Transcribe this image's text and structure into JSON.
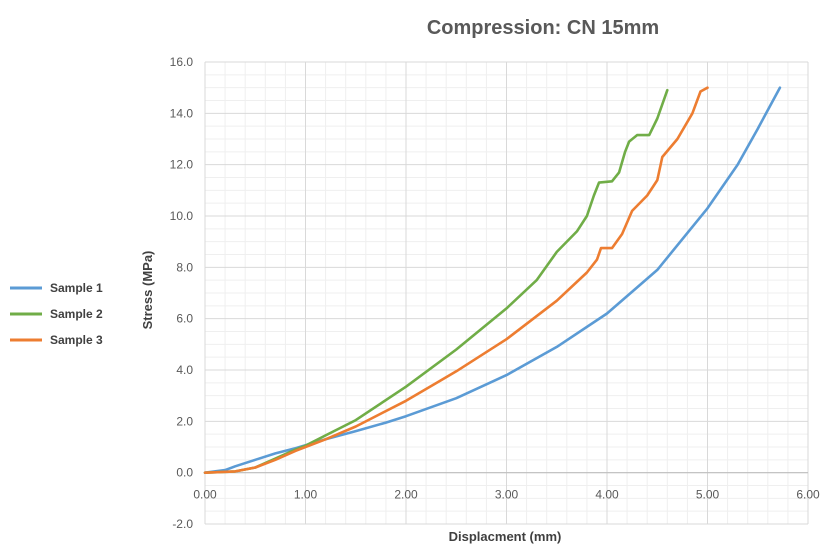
{
  "chart_data": {
    "type": "line",
    "title": "Compression: CN 15mm",
    "xlabel": "Displacment (mm)",
    "ylabel": "Stress (MPa)",
    "xlim": [
      0,
      6
    ],
    "ylim": [
      -2,
      16
    ],
    "x_ticks": [
      0,
      1,
      2,
      3,
      4,
      5,
      6
    ],
    "x_tick_labels": [
      "0.00",
      "1.00",
      "2.00",
      "3.00",
      "4.00",
      "5.00",
      "6.00"
    ],
    "y_ticks": [
      -2,
      0,
      2,
      4,
      6,
      8,
      10,
      12,
      14,
      16
    ],
    "y_tick_labels": [
      "-2.0",
      "0.0",
      "2.0",
      "4.0",
      "6.0",
      "8.0",
      "10.0",
      "12.0",
      "14.0",
      "16.0"
    ],
    "grid": true,
    "legend_position": "left",
    "series": [
      {
        "name": "Sample 1",
        "color": "#5b9bd5",
        "points": [
          [
            0,
            0
          ],
          [
            0.2,
            0.1
          ],
          [
            0.3,
            0.25
          ],
          [
            0.5,
            0.5
          ],
          [
            0.7,
            0.75
          ],
          [
            0.9,
            0.95
          ],
          [
            1.2,
            1.3
          ],
          [
            1.5,
            1.62
          ],
          [
            1.8,
            1.95
          ],
          [
            2.0,
            2.2
          ],
          [
            2.5,
            2.9
          ],
          [
            3.0,
            3.8
          ],
          [
            3.5,
            4.9
          ],
          [
            4.0,
            6.2
          ],
          [
            4.5,
            7.9
          ],
          [
            5.0,
            10.3
          ],
          [
            5.3,
            12.0
          ],
          [
            5.5,
            13.4
          ],
          [
            5.72,
            15.0
          ]
        ]
      },
      {
        "name": "Sample 2",
        "color": "#70ad47",
        "points": [
          [
            0,
            0
          ],
          [
            0.3,
            0.05
          ],
          [
            0.5,
            0.2
          ],
          [
            0.7,
            0.55
          ],
          [
            0.9,
            0.9
          ],
          [
            1.0,
            1.05
          ],
          [
            1.2,
            1.45
          ],
          [
            1.5,
            2.05
          ],
          [
            2.0,
            3.35
          ],
          [
            2.5,
            4.8
          ],
          [
            3.0,
            6.4
          ],
          [
            3.3,
            7.5
          ],
          [
            3.5,
            8.6
          ],
          [
            3.7,
            9.4
          ],
          [
            3.8,
            10.0
          ],
          [
            3.87,
            10.8
          ],
          [
            3.92,
            11.3
          ],
          [
            4.05,
            11.35
          ],
          [
            4.12,
            11.7
          ],
          [
            4.18,
            12.5
          ],
          [
            4.22,
            12.9
          ],
          [
            4.3,
            13.15
          ],
          [
            4.42,
            13.15
          ],
          [
            4.5,
            13.8
          ],
          [
            4.6,
            14.9
          ]
        ]
      },
      {
        "name": "Sample 3",
        "color": "#ed7d31",
        "points": [
          [
            0,
            0
          ],
          [
            0.3,
            0.05
          ],
          [
            0.5,
            0.2
          ],
          [
            0.7,
            0.5
          ],
          [
            0.9,
            0.85
          ],
          [
            1.0,
            1.0
          ],
          [
            1.2,
            1.3
          ],
          [
            1.5,
            1.8
          ],
          [
            2.0,
            2.8
          ],
          [
            2.5,
            3.95
          ],
          [
            3.0,
            5.2
          ],
          [
            3.5,
            6.7
          ],
          [
            3.8,
            7.8
          ],
          [
            3.9,
            8.3
          ],
          [
            3.94,
            8.75
          ],
          [
            4.05,
            8.75
          ],
          [
            4.15,
            9.3
          ],
          [
            4.25,
            10.2
          ],
          [
            4.4,
            10.8
          ],
          [
            4.5,
            11.4
          ],
          [
            4.55,
            12.3
          ],
          [
            4.7,
            13.0
          ],
          [
            4.85,
            14.0
          ],
          [
            4.93,
            14.85
          ],
          [
            5.0,
            15.0
          ]
        ]
      }
    ]
  }
}
